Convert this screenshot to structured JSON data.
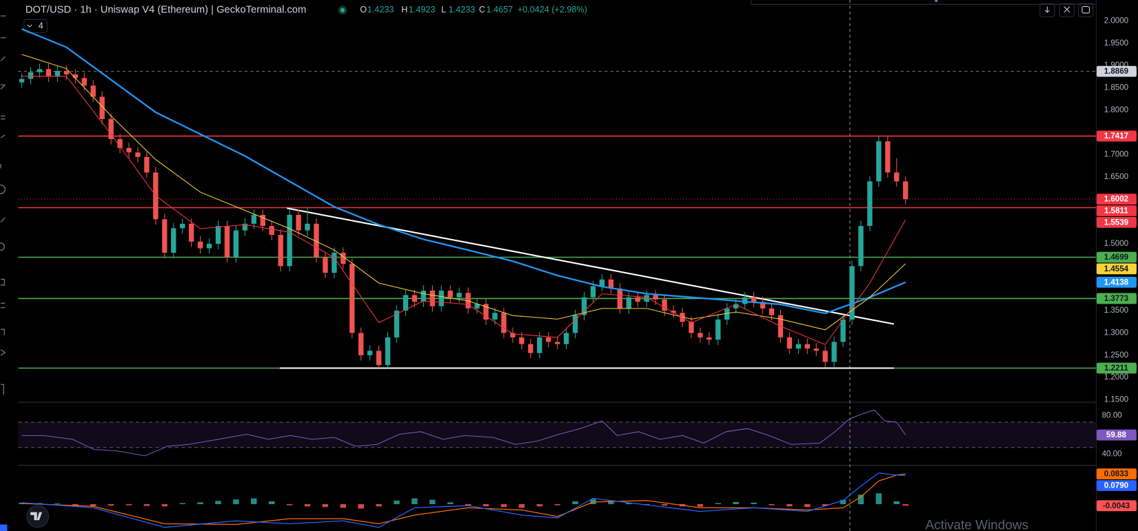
{
  "chart_data": {
    "type": "candlestick",
    "title": "DOT/USD · 1h · Uniswap V4 (Ethereum) | GeckoTerminal.com",
    "ohlc_legend": [
      {
        "label": "O",
        "value": 1.4233
      },
      {
        "label": "H",
        "value": 1.4923
      },
      {
        "label": "L",
        "value": 1.4233
      },
      {
        "label": "C",
        "value": 1.4657
      }
    ],
    "change": "+0.0424 (+2.98%)",
    "indicator_count": 4,
    "up_color": "#26a69a",
    "down_color": "#ef5350",
    "ylim": [
      1.147,
      2.047
    ],
    "yticks": [
      {
        "value": 2.0,
        "label": "2.0000"
      },
      {
        "value": 1.95,
        "label": "1.9500"
      },
      {
        "value": 1.9,
        "label": "1.9000"
      },
      {
        "value": 1.85,
        "label": "1.8500"
      },
      {
        "value": 1.8,
        "label": "1.8000"
      },
      {
        "value": 1.7,
        "label": "1.7000"
      },
      {
        "value": 1.65,
        "label": "1.6500"
      },
      {
        "value": 1.5,
        "label": "1.5000"
      },
      {
        "value": 1.35,
        "label": "1.3500"
      },
      {
        "value": 1.3,
        "label": "1.3000"
      },
      {
        "value": 1.25,
        "label": "1.2500"
      },
      {
        "value": 1.2,
        "label": "1.2000"
      },
      {
        "value": 1.15,
        "label": "1.1500"
      }
    ],
    "candles": [
      [
        1.862,
        1.882,
        1.85,
        1.87
      ],
      [
        1.87,
        1.897,
        1.858,
        1.885
      ],
      [
        1.885,
        1.904,
        1.873,
        1.892
      ],
      [
        1.892,
        1.904,
        1.863,
        1.875
      ],
      [
        1.875,
        1.9,
        1.863,
        1.888
      ],
      [
        1.888,
        1.9,
        1.868,
        1.88
      ],
      [
        1.88,
        1.892,
        1.86,
        1.872
      ],
      [
        1.872,
        1.884,
        1.843,
        1.855
      ],
      [
        1.855,
        1.867,
        1.818,
        1.83
      ],
      [
        1.83,
        1.842,
        1.768,
        1.78
      ],
      [
        1.78,
        1.792,
        1.723,
        1.735
      ],
      [
        1.735,
        1.747,
        1.703,
        1.715
      ],
      [
        1.715,
        1.727,
        1.693,
        1.705
      ],
      [
        1.705,
        1.717,
        1.683,
        1.695
      ],
      [
        1.695,
        1.707,
        1.648,
        1.66
      ],
      [
        1.66,
        1.672,
        1.543,
        1.555
      ],
      [
        1.555,
        1.567,
        1.468,
        1.48
      ],
      [
        1.48,
        1.547,
        1.468,
        1.535
      ],
      [
        1.535,
        1.557,
        1.523,
        1.545
      ],
      [
        1.545,
        1.557,
        1.493,
        1.505
      ],
      [
        1.505,
        1.517,
        1.478,
        1.49
      ],
      [
        1.49,
        1.512,
        1.478,
        1.5
      ],
      [
        1.5,
        1.552,
        1.488,
        1.54
      ],
      [
        1.54,
        1.552,
        1.458,
        1.47
      ],
      [
        1.47,
        1.542,
        1.458,
        1.53
      ],
      [
        1.53,
        1.557,
        1.518,
        1.545
      ],
      [
        1.545,
        1.577,
        1.533,
        1.565
      ],
      [
        1.565,
        1.577,
        1.528,
        1.54
      ],
      [
        1.54,
        1.552,
        1.508,
        1.52
      ],
      [
        1.52,
        1.532,
        1.438,
        1.45
      ],
      [
        1.45,
        1.577,
        1.438,
        1.565
      ],
      [
        1.565,
        1.577,
        1.518,
        1.53
      ],
      [
        1.53,
        1.58,
        1.518,
        1.545
      ],
      [
        1.545,
        1.557,
        1.458,
        1.47
      ],
      [
        1.47,
        1.482,
        1.423,
        1.435
      ],
      [
        1.435,
        1.492,
        1.423,
        1.48
      ],
      [
        1.48,
        1.492,
        1.443,
        1.455
      ],
      [
        1.455,
        1.467,
        1.288,
        1.3
      ],
      [
        1.3,
        1.312,
        1.238,
        1.25
      ],
      [
        1.25,
        1.272,
        1.238,
        1.26
      ],
      [
        1.26,
        1.272,
        1.221,
        1.228
      ],
      [
        1.228,
        1.302,
        1.221,
        1.29
      ],
      [
        1.29,
        1.362,
        1.278,
        1.35
      ],
      [
        1.35,
        1.397,
        1.338,
        1.385
      ],
      [
        1.385,
        1.397,
        1.358,
        1.37
      ],
      [
        1.37,
        1.407,
        1.358,
        1.395
      ],
      [
        1.395,
        1.407,
        1.348,
        1.36
      ],
      [
        1.36,
        1.407,
        1.348,
        1.395
      ],
      [
        1.395,
        1.407,
        1.368,
        1.38
      ],
      [
        1.38,
        1.402,
        1.368,
        1.39
      ],
      [
        1.39,
        1.402,
        1.343,
        1.355
      ],
      [
        1.355,
        1.377,
        1.343,
        1.365
      ],
      [
        1.365,
        1.377,
        1.318,
        1.33
      ],
      [
        1.33,
        1.357,
        1.318,
        1.345
      ],
      [
        1.345,
        1.357,
        1.288,
        1.3
      ],
      [
        1.3,
        1.312,
        1.278,
        1.29
      ],
      [
        1.29,
        1.302,
        1.263,
        1.275
      ],
      [
        1.275,
        1.287,
        1.243,
        1.255
      ],
      [
        1.255,
        1.302,
        1.243,
        1.29
      ],
      [
        1.29,
        1.302,
        1.268,
        1.28
      ],
      [
        1.28,
        1.292,
        1.263,
        1.275
      ],
      [
        1.275,
        1.312,
        1.263,
        1.3
      ],
      [
        1.3,
        1.352,
        1.288,
        1.34
      ],
      [
        1.34,
        1.392,
        1.328,
        1.38
      ],
      [
        1.38,
        1.417,
        1.368,
        1.405
      ],
      [
        1.405,
        1.432,
        1.393,
        1.42
      ],
      [
        1.42,
        1.432,
        1.388,
        1.4
      ],
      [
        1.4,
        1.412,
        1.343,
        1.355
      ],
      [
        1.355,
        1.392,
        1.343,
        1.38
      ],
      [
        1.38,
        1.392,
        1.358,
        1.37
      ],
      [
        1.37,
        1.397,
        1.358,
        1.385
      ],
      [
        1.385,
        1.397,
        1.363,
        1.375
      ],
      [
        1.375,
        1.387,
        1.338,
        1.35
      ],
      [
        1.35,
        1.362,
        1.333,
        1.345
      ],
      [
        1.345,
        1.357,
        1.313,
        1.325
      ],
      [
        1.325,
        1.337,
        1.288,
        1.3
      ],
      [
        1.3,
        1.312,
        1.278,
        1.29
      ],
      [
        1.29,
        1.302,
        1.273,
        1.285
      ],
      [
        1.285,
        1.342,
        1.273,
        1.33
      ],
      [
        1.33,
        1.367,
        1.318,
        1.355
      ],
      [
        1.355,
        1.377,
        1.343,
        1.365
      ],
      [
        1.365,
        1.392,
        1.353,
        1.38
      ],
      [
        1.38,
        1.392,
        1.358,
        1.37
      ],
      [
        1.37,
        1.382,
        1.343,
        1.355
      ],
      [
        1.355,
        1.367,
        1.328,
        1.34
      ],
      [
        1.34,
        1.352,
        1.278,
        1.29
      ],
      [
        1.29,
        1.302,
        1.253,
        1.265
      ],
      [
        1.265,
        1.287,
        1.253,
        1.275
      ],
      [
        1.275,
        1.287,
        1.253,
        1.265
      ],
      [
        1.265,
        1.277,
        1.248,
        1.26
      ],
      [
        1.26,
        1.272,
        1.223,
        1.235
      ],
      [
        1.235,
        1.292,
        1.223,
        1.28
      ],
      [
        1.28,
        1.342,
        1.268,
        1.33
      ],
      [
        1.33,
        1.462,
        1.318,
        1.45
      ],
      [
        1.45,
        1.552,
        1.438,
        1.54
      ],
      [
        1.54,
        1.652,
        1.528,
        1.64
      ],
      [
        1.64,
        1.742,
        1.628,
        1.73
      ],
      [
        1.73,
        1.742,
        1.648,
        1.66
      ],
      [
        1.66,
        1.692,
        1.628,
        1.64
      ],
      [
        1.64,
        1.652,
        1.588,
        1.6002
      ]
    ],
    "last_price_line": {
      "color": "#f23645",
      "dash": "1 3",
      "badge": "#f23645",
      "label_color": "#ffffff"
    },
    "moving_averages": [
      {
        "color": "#2196f3",
        "width": 2.2,
        "label_color": "#ffffff",
        "x": [
          0,
          5,
          10,
          15,
          20,
          25,
          30,
          35,
          40,
          45,
          50,
          55,
          60,
          65,
          70,
          75,
          80,
          85,
          90,
          95,
          99
        ],
        "values": [
          1.982,
          1.941,
          1.868,
          1.795,
          1.746,
          1.697,
          1.64,
          1.583,
          1.543,
          1.51,
          1.486,
          1.461,
          1.429,
          1.404,
          1.388,
          1.38,
          1.372,
          1.364,
          1.344,
          1.38,
          1.4138
        ]
      },
      {
        "color": "#f7d33a",
        "width": 1,
        "label_color": "#131722",
        "x": [
          0,
          5,
          10,
          15,
          20,
          25,
          30,
          35,
          40,
          45,
          50,
          55,
          60,
          65,
          70,
          75,
          80,
          85,
          90,
          95,
          99
        ],
        "values": [
          1.925,
          1.893,
          1.787,
          1.689,
          1.616,
          1.575,
          1.534,
          1.486,
          1.412,
          1.388,
          1.372,
          1.339,
          1.331,
          1.355,
          1.355,
          1.331,
          1.347,
          1.331,
          1.307,
          1.38,
          1.4554
        ]
      },
      {
        "color": "#f23645",
        "width": 1,
        "label_color": "#ffffff",
        "x": [
          0,
          5,
          10,
          15,
          20,
          25,
          30,
          35,
          40,
          45,
          50,
          55,
          60,
          65,
          70,
          75,
          80,
          85,
          90,
          95,
          99
        ],
        "values": [
          1.876,
          1.876,
          1.746,
          1.608,
          1.534,
          1.543,
          1.526,
          1.469,
          1.323,
          1.372,
          1.364,
          1.298,
          1.29,
          1.388,
          1.38,
          1.323,
          1.364,
          1.315,
          1.274,
          1.412,
          1.5539
        ]
      }
    ],
    "trendlines": [
      {
        "color": "#ffffff",
        "x": [
          29.7,
          97.7
        ],
        "values": [
          1.58,
          1.32
        ]
      },
      {
        "color": "#ffffff",
        "x": [
          28.9,
          97.7
        ],
        "values": [
          1.2211,
          1.2211
        ]
      }
    ],
    "levels": [
      {
        "value": 1.8869,
        "color": "#787b86",
        "dash": "4 4",
        "badge": "#d1d4dc",
        "label_color": "#131722"
      },
      {
        "value": 1.7417,
        "color": "#f23645",
        "badge": "#f23645",
        "label_color": "#ffffff"
      },
      {
        "value": 1.5811,
        "color": "#f23645",
        "badge": "#f23645",
        "label_color": "#ffffff"
      },
      {
        "value": 1.4699,
        "color": "#4caf50",
        "badge": "#4caf50",
        "label_color": "#131722"
      },
      {
        "value": 1.3773,
        "color": "#4caf50",
        "badge": "#4caf50",
        "label_color": "#131722"
      },
      {
        "value": 1.2211,
        "color": "#4caf50",
        "badge": "#4caf50",
        "label_color": "#131722"
      }
    ],
    "rsi": {
      "ylim": [
        13.7,
        109.7
      ],
      "yticks": [
        {
          "value": 80,
          "label": "80.00"
        },
        {
          "value": 40,
          "label": "40.00"
        }
      ],
      "color": "#7e57c2",
      "x": [
        0,
        2.4,
        5.7,
        8.1,
        10.6,
        13.8,
        16.3,
        18.7,
        22,
        25.2,
        27.6,
        30.1,
        32.5,
        35,
        37.4,
        39.8,
        42.3,
        44.7,
        47.2,
        49.6,
        52.8,
        55.3,
        57.7,
        60.2,
        62.6,
        65,
        66.7,
        69.1,
        71.5,
        74,
        76.4,
        78.9,
        81.3,
        83.7,
        86.2,
        89.4,
        91.1,
        92.7,
        94.3,
        95.5,
        96.7,
        98,
        99
      ],
      "values": [
        59,
        59,
        53,
        37,
        35,
        27,
        42,
        45,
        53,
        61,
        53,
        59,
        53,
        56,
        42,
        45,
        61,
        65,
        53,
        59,
        56,
        45,
        50,
        61,
        70,
        82,
        59,
        65,
        53,
        59,
        47,
        65,
        70,
        59,
        45,
        47,
        65,
        85,
        94,
        99,
        82,
        80,
        59.88
      ]
    },
    "macd": {
      "ylim": [
        -0.074,
        0.106
      ],
      "histogram": {
        "up_color": "#26a69a",
        "down_color": "#ff5252",
        "x": [
          0,
          2,
          4,
          6,
          8,
          10,
          12,
          14,
          16,
          18,
          20,
          22,
          24,
          26,
          28,
          30,
          32,
          34,
          36,
          38,
          40,
          42,
          44,
          46,
          48,
          50,
          52,
          54,
          56,
          58,
          60,
          62,
          64,
          66,
          68,
          70,
          72,
          74,
          76,
          78,
          80,
          82,
          84,
          86,
          88,
          90,
          92,
          94,
          96,
          98,
          99
        ],
        "values": [
          0.004,
          0.003,
          0.002,
          -0.003,
          -0.005,
          -0.004,
          -0.003,
          -0.005,
          -0.006,
          0.003,
          0.005,
          0.009,
          0.013,
          0.016,
          0.008,
          -0.003,
          -0.006,
          -0.008,
          -0.01,
          -0.012,
          -0.006,
          0.01,
          0.016,
          0.012,
          0.005,
          -0.004,
          -0.006,
          -0.008,
          -0.01,
          -0.006,
          -0.003,
          0.008,
          0.014,
          0.01,
          0.004,
          -0.002,
          -0.004,
          -0.006,
          -0.007,
          0.003,
          0.006,
          0.004,
          -0.003,
          -0.006,
          -0.008,
          -0.005,
          0.012,
          0.026,
          0.03,
          0.008,
          -0.0043
        ]
      },
      "lines": [
        {
          "color": "#ff6d00",
          "label_color": "#131722",
          "x": [
            0,
            8,
            16,
            24,
            30,
            36,
            40,
            44,
            50,
            56,
            60,
            64,
            70,
            76,
            82,
            88,
            92,
            94,
            96,
            98,
            99
          ],
          "values": [
            0.002,
            -0.006,
            -0.054,
            -0.056,
            -0.04,
            -0.04,
            -0.054,
            -0.03,
            -0.01,
            -0.016,
            -0.034,
            0.006,
            0.01,
            -0.01,
            -0.01,
            -0.016,
            -0.01,
            0.02,
            0.064,
            0.08,
            0.0833
          ]
        },
        {
          "color": "#2962ff",
          "label_color": "#ffffff",
          "x": [
            0,
            8,
            16,
            24,
            30,
            36,
            40,
            44,
            50,
            56,
            60,
            64,
            70,
            76,
            82,
            88,
            92,
            94,
            96,
            98,
            99
          ],
          "values": [
            0.004,
            -0.01,
            -0.064,
            -0.046,
            -0.054,
            -0.046,
            -0.064,
            -0.01,
            -0.004,
            -0.03,
            -0.038,
            0.016,
            -0.002,
            -0.02,
            -0.01,
            -0.02,
            0.01,
            0.05,
            0.086,
            0.08,
            0.079
          ],
          "value_labels": [
            null,
            null,
            null,
            null,
            null,
            null,
            null,
            null,
            null,
            null,
            null,
            null,
            null,
            null,
            null,
            null,
            null,
            null,
            null,
            null,
            "0.0790"
          ]
        }
      ]
    }
  },
  "overlay_text": "Activate Windows"
}
